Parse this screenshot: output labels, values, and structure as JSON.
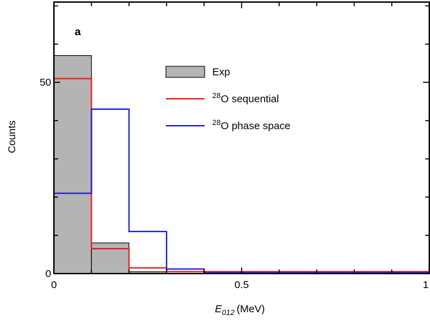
{
  "chart_data": {
    "type": "bar",
    "panel_label": "a",
    "ylabel": "Counts",
    "xlabel_var": "E",
    "xlabel_sub": "012",
    "xlabel_unit": "(MeV)",
    "xlim": [
      0,
      1
    ],
    "ylim": [
      0,
      71
    ],
    "x_ticks": [
      {
        "value": 0,
        "label": "0"
      },
      {
        "value": 0.5,
        "label": "0.5"
      },
      {
        "value": 1,
        "label": "1"
      }
    ],
    "y_ticks": [
      {
        "value": 0,
        "label": "0"
      },
      {
        "value": 50,
        "label": "50"
      }
    ],
    "bin_edges": [
      0,
      0.1,
      0.2,
      0.3,
      0.4,
      0.5,
      0.6,
      0.7,
      0.8,
      0.9,
      1.0
    ],
    "series": [
      {
        "name": "Exp",
        "kind": "filled-hist",
        "color": "#b4b4b4",
        "values": [
          57,
          8,
          0.5,
          0,
          0,
          0,
          0,
          0,
          0,
          0
        ]
      },
      {
        "name": "O sequential",
        "name_sup": "28",
        "kind": "step",
        "color": "#e8221a",
        "values": [
          51,
          6.5,
          1.5,
          0.5,
          0.5,
          0.5,
          0.5,
          0.5,
          0.5,
          0.5
        ]
      },
      {
        "name": "O phase space",
        "name_sup": "28",
        "kind": "step",
        "color": "#2323d6",
        "values": [
          21,
          43,
          11,
          1.2,
          0.3,
          0.3,
          0.3,
          0.3,
          0.3,
          0.3
        ]
      }
    ],
    "legend_position": "upper-right",
    "grid": false
  }
}
